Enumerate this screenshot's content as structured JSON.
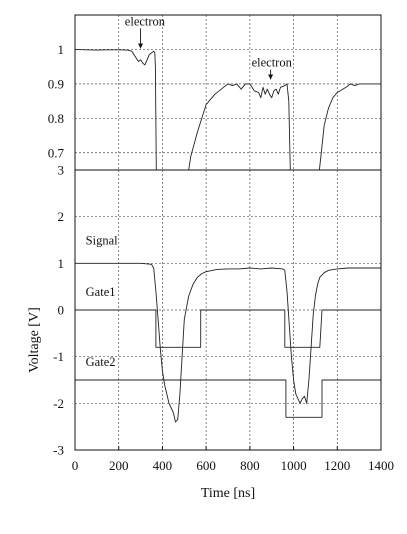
{
  "chart_data": [
    {
      "type": "line",
      "panel": "top",
      "x_domain": [
        0,
        1400
      ],
      "ylim": [
        0.65,
        1.1
      ],
      "y_ticks": [
        "1",
        "0.9",
        "0.8",
        "0.7"
      ],
      "y_tick_values": [
        1.0,
        0.9,
        0.8,
        0.7
      ],
      "grid": true,
      "annotations": [
        {
          "text": "electron",
          "x": 320,
          "y": 1.07
        },
        {
          "text": "electron",
          "x": 900,
          "y": 0.95
        }
      ],
      "series": [
        {
          "x": [
            0,
            50,
            100,
            150,
            200,
            240,
            260,
            270,
            280,
            290,
            300,
            310,
            320,
            330,
            340,
            350,
            360,
            365,
            368,
            372
          ],
          "y": [
            1.0,
            0.999,
            0.998,
            0.999,
            0.999,
            0.998,
            0.995,
            0.985,
            0.975,
            0.965,
            0.97,
            0.96,
            0.955,
            0.97,
            0.985,
            0.99,
            0.995,
            0.99,
            0.95,
            0.65
          ]
        },
        {
          "x": [
            520,
            530,
            560,
            600,
            640,
            680,
            700,
            720,
            740,
            760,
            780,
            800,
            820,
            840,
            850,
            860,
            870,
            880,
            890,
            900,
            910,
            920,
            930,
            940,
            960,
            970,
            978,
            985
          ],
          "y": [
            0.65,
            0.69,
            0.76,
            0.84,
            0.87,
            0.89,
            0.9,
            0.895,
            0.9,
            0.885,
            0.9,
            0.9,
            0.88,
            0.875,
            0.86,
            0.89,
            0.87,
            0.885,
            0.87,
            0.86,
            0.88,
            0.885,
            0.87,
            0.89,
            0.895,
            0.9,
            0.85,
            0.65
          ]
        },
        {
          "x": [
            1118,
            1125,
            1140,
            1160,
            1180,
            1200,
            1240,
            1260,
            1280,
            1300,
            1320,
            1340,
            1360,
            1400
          ],
          "y": [
            0.65,
            0.69,
            0.78,
            0.83,
            0.86,
            0.875,
            0.89,
            0.9,
            0.895,
            0.9,
            0.9,
            0.9,
            0.9,
            0.9
          ]
        }
      ]
    },
    {
      "type": "line",
      "panel": "bottom",
      "x": [
        0,
        1400
      ],
      "xlabel": "Time [ns]",
      "ylabel": "Voltage [V]",
      "xlim": [
        0,
        1400
      ],
      "ylim": [
        -3,
        3
      ],
      "x_ticks": [
        "0",
        "200",
        "400",
        "600",
        "800",
        "1000",
        "1200",
        "1400"
      ],
      "x_tick_values": [
        0,
        200,
        400,
        600,
        800,
        1000,
        1200,
        1400
      ],
      "y_ticks": [
        "3",
        "2",
        "1",
        "0",
        "-1",
        "-2",
        "-3"
      ],
      "y_tick_values": [
        3,
        2,
        1,
        0,
        -1,
        -2,
        -3
      ],
      "grid": true,
      "series": [
        {
          "name": "Signal",
          "x": [
            0,
            100,
            200,
            300,
            350,
            360,
            370,
            380,
            390,
            400,
            410,
            420,
            430,
            440,
            450,
            460,
            470,
            480,
            490,
            500,
            520,
            540,
            560,
            580,
            600,
            650,
            700,
            750,
            800,
            850,
            900,
            950,
            960,
            970,
            980,
            990,
            1000,
            1010,
            1020,
            1030,
            1040,
            1050,
            1060,
            1070,
            1080,
            1090,
            1100,
            1110,
            1120,
            1140,
            1160,
            1200,
            1250,
            1300,
            1350,
            1400
          ],
          "y": [
            1.0,
            1.0,
            1.0,
            1.0,
            0.98,
            0.9,
            0.4,
            -0.2,
            -0.8,
            -1.3,
            -1.6,
            -1.8,
            -2.0,
            -2.1,
            -2.2,
            -2.4,
            -2.35,
            -1.8,
            -1.0,
            -0.2,
            0.3,
            0.55,
            0.7,
            0.78,
            0.82,
            0.87,
            0.88,
            0.88,
            0.9,
            0.88,
            0.9,
            0.88,
            0.85,
            0.4,
            -0.3,
            -1.0,
            -1.5,
            -1.8,
            -1.9,
            -2.0,
            -1.9,
            -1.85,
            -2.0,
            -1.5,
            -0.8,
            -0.1,
            0.3,
            0.55,
            0.7,
            0.8,
            0.85,
            0.88,
            0.9,
            0.9,
            0.9,
            0.9
          ]
        },
        {
          "name": "Gate1",
          "x": [
            0,
            360,
            370,
            370,
            575,
            575,
            600,
            960,
            960,
            1120,
            1130,
            1400
          ],
          "y": [
            0,
            0,
            0,
            -0.8,
            -0.8,
            0,
            0,
            0,
            -0.8,
            -0.8,
            0,
            0
          ]
        },
        {
          "name": "Gate2",
          "x": [
            0,
            490,
            490,
            965,
            965,
            1130,
            1130,
            1400
          ],
          "y": [
            -1.5,
            -1.5,
            -1.5,
            -1.5,
            -2.3,
            -2.3,
            -1.5,
            -1.5
          ]
        }
      ]
    }
  ]
}
